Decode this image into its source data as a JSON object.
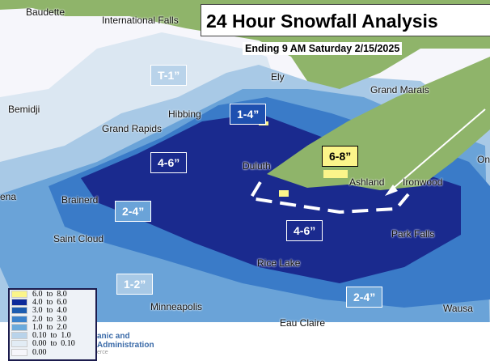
{
  "title": "24 Hour Snowfall Analysis",
  "subtitle": "Ending 9 AM Saturday 2/15/2025",
  "colors": {
    "land": "#8fb46a",
    "water": "#a9c8e0",
    "c0": "#f3f5fa",
    "c01": "#dbe7f2",
    "c1": "#a8c9e6",
    "c2": "#6aa3d8",
    "c3": "#3a7bc8",
    "c4": "#1e50b0",
    "c6": "#1a2a8e",
    "yellow": "#fbf58a"
  },
  "cities": [
    "Baudette",
    "International Falls",
    "Bemidji",
    "Ely",
    "Grand Marais",
    "Hibbing",
    "Grand Rapids",
    "Duluth",
    "Ashland",
    "Ironwood",
    "Brainerd",
    "Park Falls",
    "Saint Cloud",
    "Rice Lake",
    "Minneapolis",
    "Eau Claire",
    "Wausa",
    "ena",
    "On"
  ],
  "amounts": [
    "T-1”",
    "1-4”",
    "4-6”",
    "6-8”",
    "2-4”",
    "4-6”",
    "1-2”",
    "2-4”"
  ],
  "legend": [
    {
      "range": "6.0  to  8.0",
      "color": "#fbf58a"
    },
    {
      "range": "4.0  to  6.0",
      "color": "#0d2a9a"
    },
    {
      "range": "3.0  to  4.0",
      "color": "#1c5cb0"
    },
    {
      "range": "2.0  to  3.0",
      "color": "#3a82cc"
    },
    {
      "range": "1.0  to  2.0",
      "color": "#6aaadc"
    },
    {
      "range": "0.10  to  1.0",
      "color": "#b9d3ea"
    },
    {
      "range": "0.00  to  0.10",
      "color": "#e2ecf5"
    },
    {
      "range": "0.00",
      "color": "#f6f6fb"
    }
  ],
  "noaa": {
    "line1": "anic and",
    "line2": "Administration",
    "line3": "erce"
  }
}
